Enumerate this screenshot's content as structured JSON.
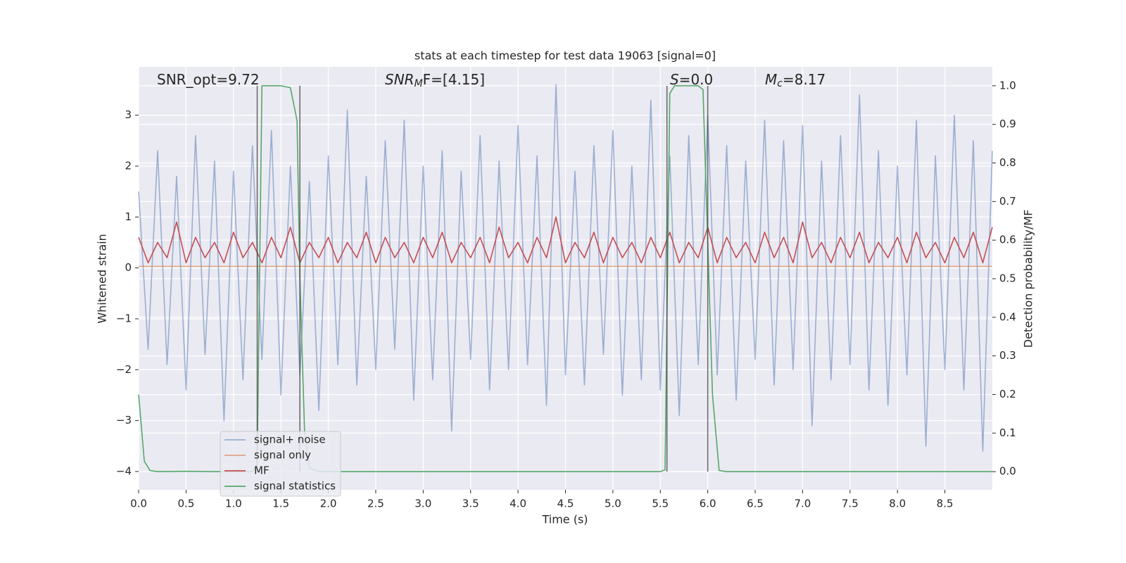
{
  "chart_data": {
    "type": "line",
    "title": "stats at each timestep for test data 19063 [signal=0]",
    "x_label": "Time (s)",
    "y_label": "Whitened strain",
    "y2_label": "Detection probability/MF",
    "annotations": [
      {
        "parts": [
          "SNR_opt=9.72"
        ]
      },
      {
        "parts": [
          "SNR",
          "M",
          "F=[4.15]"
        ]
      },
      {
        "parts": [
          "S",
          "=0.0"
        ]
      },
      {
        "parts": [
          "M",
          "c",
          "=8.17"
        ]
      }
    ],
    "x": [
      0,
      0.1,
      0.2,
      0.3,
      0.4,
      0.5,
      0.6,
      0.7,
      0.8,
      0.9,
      1,
      1.1,
      1.2,
      1.3,
      1.4,
      1.5,
      1.6,
      1.7,
      1.8,
      1.9,
      2,
      2.1,
      2.2,
      2.3,
      2.4,
      2.5,
      2.6,
      2.7,
      2.8,
      2.9,
      3,
      3.1,
      3.2,
      3.3,
      3.4,
      3.5,
      3.6,
      3.7,
      3.8,
      3.9,
      4,
      4.1,
      4.2,
      4.3,
      4.4,
      4.5,
      4.6,
      4.7,
      4.8,
      4.9,
      5,
      5.1,
      5.2,
      5.3,
      5.4,
      5.5,
      5.6,
      5.7,
      5.8,
      5.9,
      6,
      6.1,
      6.2,
      6.3,
      6.4,
      6.5,
      6.6,
      6.7,
      6.8,
      6.9,
      7,
      7.1,
      7.2,
      7.3,
      7.4,
      7.5,
      7.6,
      7.7,
      7.8,
      7.9,
      8,
      8.1,
      8.2,
      8.3,
      8.4,
      8.5,
      8.6,
      8.7,
      8.8,
      8.9,
      9
    ],
    "series": [
      {
        "name": "signal+ noise",
        "color": "#4c72b0",
        "opacity": 0.5,
        "values": [
          1.5,
          -1.6,
          2.3,
          -1.9,
          1.8,
          -2.4,
          2.6,
          -1.7,
          2.1,
          -3.0,
          1.9,
          -2.2,
          2.4,
          -1.8,
          2.7,
          -2.5,
          2.0,
          -2.1,
          1.7,
          -2.8,
          2.2,
          -1.9,
          3.1,
          -2.3,
          1.8,
          -2.0,
          2.5,
          -1.6,
          2.9,
          -2.6,
          2.0,
          -2.2,
          2.3,
          -3.2,
          1.9,
          -1.8,
          2.6,
          -2.4,
          2.1,
          -2.0,
          2.8,
          -1.9,
          2.2,
          -2.7,
          3.6,
          -2.1,
          1.9,
          -2.3,
          2.4,
          -1.7,
          2.7,
          -2.5,
          2.0,
          -2.2,
          3.3,
          -2.4,
          2.2,
          -2.9,
          2.6,
          -1.9,
          3.0,
          -2.1,
          2.4,
          -2.6,
          2.1,
          -1.8,
          2.9,
          -2.3,
          2.5,
          -2.0,
          2.8,
          -3.1,
          2.1,
          -2.2,
          2.6,
          -1.9,
          3.4,
          -2.4,
          2.3,
          -2.7,
          2.0,
          -2.1,
          2.9,
          -3.5,
          2.2,
          -2.0,
          3.0,
          -2.4,
          2.5,
          -3.6,
          2.3
        ]
      },
      {
        "name": "signal only",
        "color": "#dd8452",
        "opacity": 0.7,
        "x": [
          0,
          9
        ],
        "values": [
          0.03,
          0.03
        ]
      },
      {
        "name": "MF",
        "color": "#c44e52",
        "opacity": 1,
        "values": [
          0.6,
          0.1,
          0.5,
          0.2,
          0.9,
          0.1,
          0.6,
          0.2,
          0.5,
          0.1,
          0.7,
          0.2,
          0.5,
          0.1,
          0.6,
          0.2,
          0.8,
          0.1,
          0.5,
          0.2,
          0.6,
          0.1,
          0.5,
          0.2,
          0.7,
          0.1,
          0.6,
          0.2,
          0.5,
          0.1,
          0.6,
          0.2,
          0.7,
          0.1,
          0.5,
          0.2,
          0.6,
          0.1,
          0.8,
          0.2,
          0.5,
          0.1,
          0.6,
          0.2,
          1.0,
          0.1,
          0.5,
          0.2,
          0.7,
          0.1,
          0.6,
          0.2,
          0.5,
          0.1,
          0.6,
          0.2,
          0.7,
          0.1,
          0.5,
          0.2,
          0.8,
          0.1,
          0.6,
          0.2,
          0.5,
          0.1,
          0.7,
          0.2,
          0.6,
          0.1,
          0.9,
          0.2,
          0.5,
          0.1,
          0.6,
          0.2,
          0.7,
          0.1,
          0.5,
          0.2,
          0.6,
          0.1,
          0.7,
          0.2,
          0.5,
          0.1,
          0.6,
          0.2,
          0.7,
          0.1,
          0.8
        ]
      },
      {
        "name": "signal statistics",
        "color": "#55a868",
        "opacity": 1,
        "axis": "y2",
        "x": [
          0,
          0.06,
          0.12,
          0.2,
          0.5,
          0.8,
          1.2,
          1.25,
          1.3,
          1.4,
          1.5,
          1.6,
          1.67,
          1.7,
          1.75,
          1.8,
          1.9,
          3,
          5.5,
          5.55,
          5.6,
          5.65,
          5.9,
          5.95,
          6.05,
          6.12,
          6.2,
          9
        ],
        "values": [
          0.2,
          0.027,
          0.003,
          0,
          0.001,
          0,
          0,
          0.02,
          1.0,
          1.0,
          1.0,
          0.995,
          0.91,
          0.5,
          0.1,
          0.01,
          0,
          0,
          0,
          0.005,
          0.98,
          1.0,
          1.0,
          0.99,
          0.2,
          0.003,
          0,
          0
        ]
      }
    ],
    "vlines": {
      "x": [
        1.25,
        1.7,
        5.57,
        6.0
      ],
      "y2_range": [
        0,
        1
      ],
      "color": "#444444"
    },
    "xlim": [
      0,
      9
    ],
    "ylim": [
      -4.36,
      3.95
    ],
    "y2lim": [
      -0.047,
      1.049
    ],
    "xticks": [
      {
        "value": 0,
        "label": "0.0"
      },
      0.5,
      {
        "value": 1,
        "label": "1.0"
      },
      1.5,
      {
        "value": 2,
        "label": "2.0"
      },
      2.5,
      {
        "value": 3,
        "label": "3.0"
      },
      3.5,
      {
        "value": 4,
        "label": "4.0"
      },
      4.5,
      {
        "value": 5,
        "label": "5.0"
      },
      5.5,
      {
        "value": 6,
        "label": "6.0"
      },
      6.5,
      {
        "value": 7,
        "label": "7.0"
      },
      7.5,
      {
        "value": 8,
        "label": "8.0"
      },
      8.5
    ],
    "yticks": [
      {
        "value": -4,
        "label": "−4"
      },
      {
        "value": -3,
        "label": "−3"
      },
      {
        "value": -2,
        "label": "−2"
      },
      {
        "value": -1,
        "label": "−1"
      },
      0,
      1,
      2,
      3
    ],
    "y2ticks": [
      {
        "value": 0,
        "label": "0.0"
      },
      0.1,
      0.2,
      0.3,
      0.4,
      0.5,
      0.6,
      0.7,
      0.8,
      0.9,
      {
        "value": 1,
        "label": "1.0"
      }
    ],
    "grid": true,
    "legend": "lower left"
  }
}
